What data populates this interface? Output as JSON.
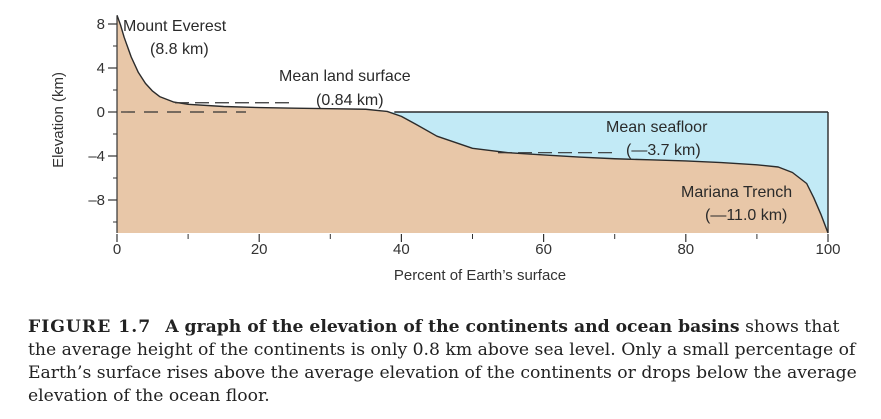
{
  "chart_data": {
    "type": "area",
    "xlabel": "Percent of Earth’s surface",
    "ylabel": "Elevation (km)",
    "xlim": [
      0,
      100
    ],
    "ylim": [
      -11,
      8.8
    ],
    "xticks": [
      "0",
      "20",
      "40",
      "60",
      "80",
      "100"
    ],
    "yticks": [
      "8",
      "4",
      "0",
      "–4",
      "–8"
    ],
    "series": [
      {
        "x": [
          0,
          0.5,
          1,
          2,
          3,
          4,
          5,
          6,
          8,
          10,
          15,
          20,
          25,
          30,
          35,
          38,
          40,
          42,
          45,
          50,
          55,
          60,
          65,
          70,
          75,
          80,
          85,
          90,
          93,
          95,
          97,
          98,
          99,
          100
        ],
        "y": [
          8.8,
          7.9,
          6.8,
          5.0,
          3.6,
          2.6,
          1.9,
          1.4,
          0.9,
          0.7,
          0.5,
          0.4,
          0.35,
          0.3,
          0.25,
          0.05,
          -0.4,
          -1.1,
          -2.2,
          -3.3,
          -3.7,
          -3.9,
          -4.1,
          -4.25,
          -4.35,
          -4.45,
          -4.6,
          -4.8,
          -5.0,
          -5.5,
          -6.5,
          -7.8,
          -9.3,
          -11.0
        ]
      }
    ],
    "sea_level": 0,
    "annotations": [
      {
        "label": "Mount Everest",
        "value_label": "(8.8 km)",
        "x": 0,
        "y": 8.8
      },
      {
        "label": "Mean land surface",
        "value_label": "(0.84 km)",
        "y": 0.84
      },
      {
        "label": "Mean seafloor",
        "value_label": "(—3.7 km)",
        "y": -3.7
      },
      {
        "label": "Mariana Trench",
        "value_label": "(—11.0 km)",
        "x": 100,
        "y": -11.0
      }
    ],
    "colors": {
      "land": "#e8c7a8",
      "ocean": "#c2eaf6",
      "outline": "#2b2b2b"
    }
  },
  "caption": {
    "label": "FIGURE 1.7",
    "lead": "A graph of the elevation of the continents and ocean basins",
    "body": " shows that the average height of the continents is only 0.8 km above sea level. Only a small percentage of Earth’s surface rises above the average elevation of the continents or drops below the average elevation of the ocean floor."
  }
}
